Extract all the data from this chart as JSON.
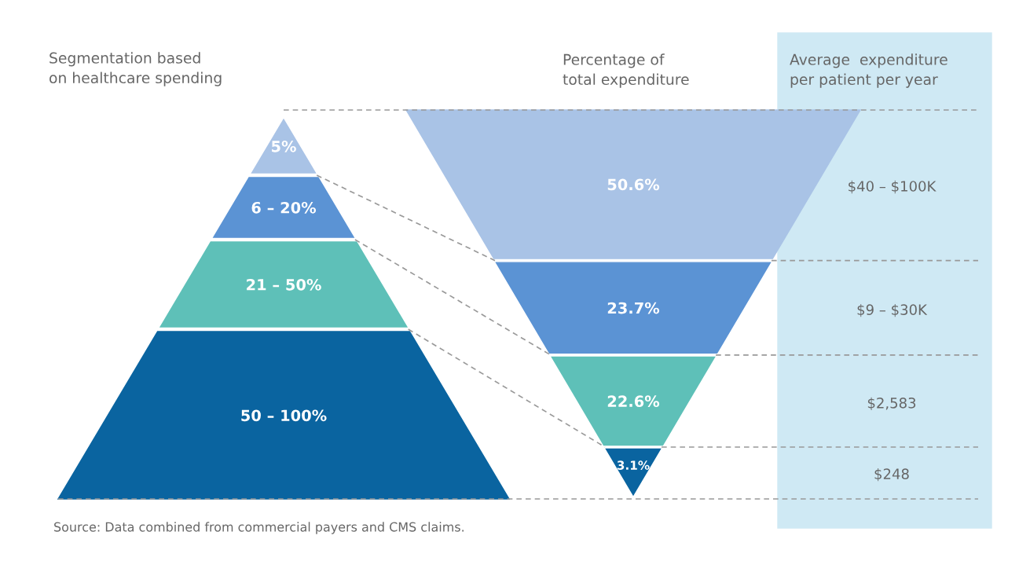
{
  "chart_data": [
    {
      "type": "other",
      "categories": [
        "5%",
        "6 – 20%",
        "21 – 50%",
        "50 – 100%"
      ],
      "colors": [
        "#a9c3e6",
        "#5b93d4",
        "#5ec0b8",
        "#0a64a0"
      ],
      "annotations": [
        "Segmentation based\non healthcare spending",
        "Source: Data combined from commercial payers and CMS claims."
      ]
    },
    {
      "type": "other",
      "categories": [
        "$40 – $100K",
        "$9 – $30K",
        "$2,583",
        "$248"
      ],
      "values": [
        50.6,
        23.7,
        22.6,
        3.1
      ],
      "value_labels": [
        "50.6%",
        "23.7%",
        "22.6%",
        "3.1%"
      ],
      "colors": [
        "#a9c3e6",
        "#5b93d4",
        "#5ec0b8",
        "#0a64a0"
      ],
      "annotations": [
        "Percentage of\ntotal expenditure",
        "Average  expenditure\nper patient per year"
      ]
    }
  ]
}
